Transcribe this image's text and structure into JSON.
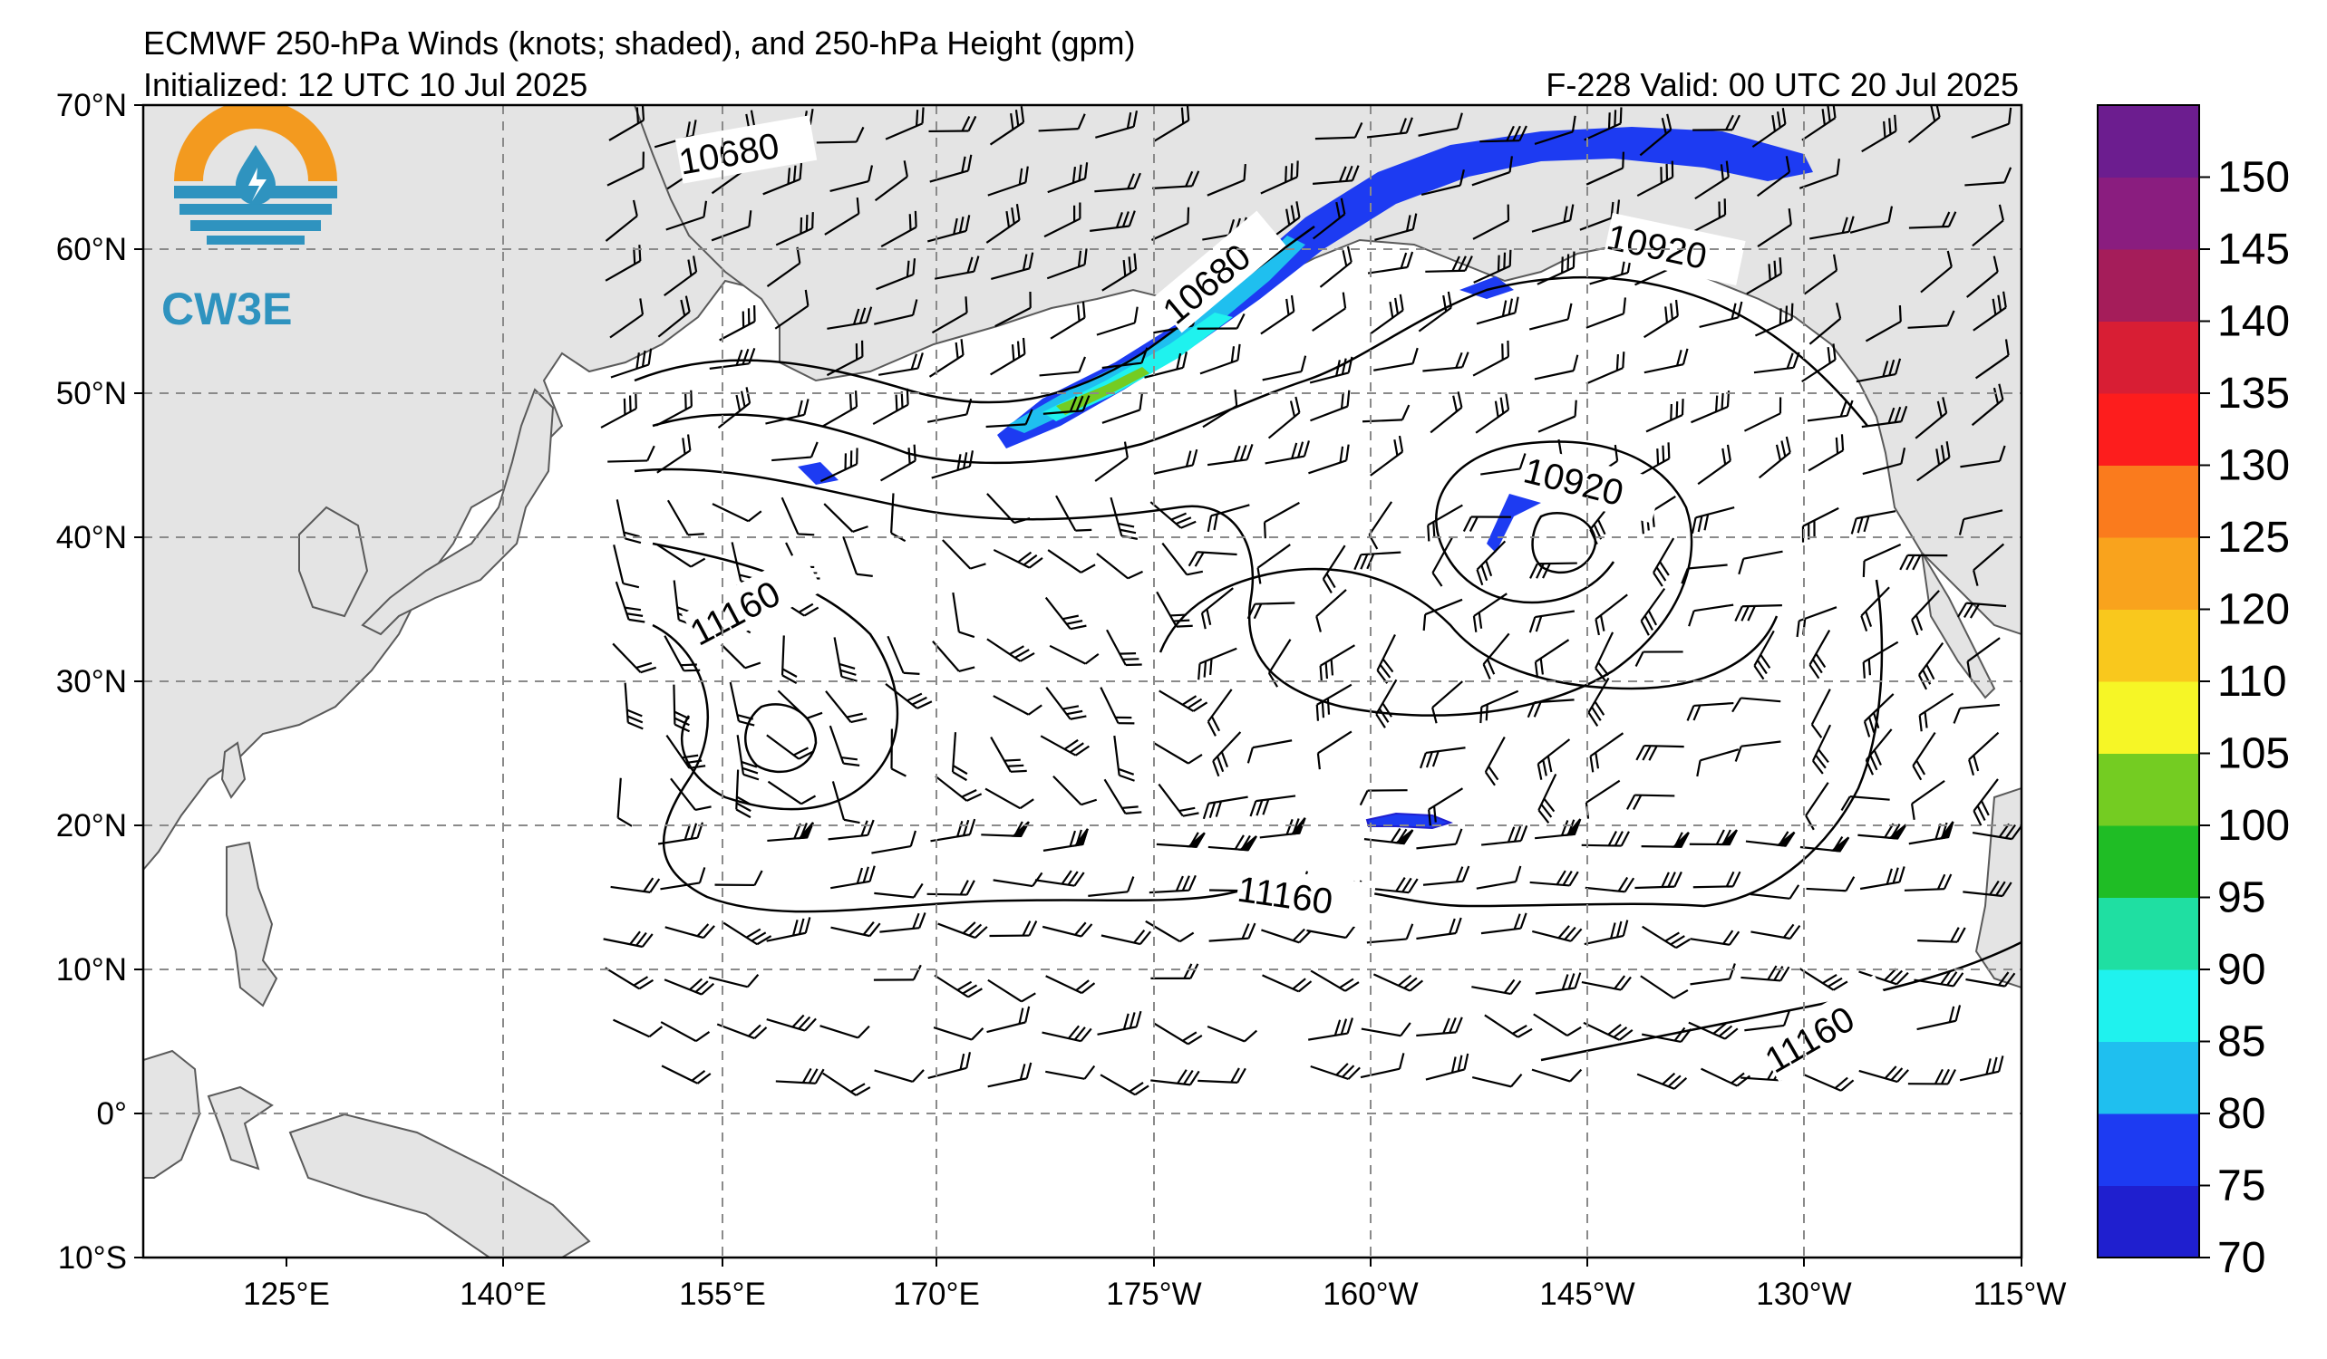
{
  "title_line1": "ECMWF 250-hPa Winds (knots; shaded), and 250-hPa Height (gpm)",
  "title_line2": "Initialized: 12 UTC 10 Jul 2025",
  "valid_line": "F-228  Valid: 00 UTC 20 Jul 2025",
  "logo_text": "CW3E",
  "lat_labels": [
    "70°N",
    "60°N",
    "50°N",
    "40°N",
    "30°N",
    "20°N",
    "10°N",
    "0°",
    "10°S"
  ],
  "lon_labels": [
    "125°E",
    "140°E",
    "155°E",
    "170°E",
    "175°W",
    "160°W",
    "145°W",
    "130°W",
    "115°W"
  ],
  "map_extent": {
    "lon_west_east": [
      115,
      245
    ],
    "lat_south_north": [
      -10,
      70
    ]
  },
  "contour_labels": [
    "10680",
    "10680",
    "10920",
    "10920",
    "11160",
    "11160",
    "11160"
  ],
  "colorbar": {
    "ticks": [
      "70",
      "75",
      "80",
      "85",
      "90",
      "95",
      "100",
      "105",
      "110",
      "120",
      "125",
      "130",
      "135",
      "140",
      "145",
      "150"
    ],
    "colors": [
      "#1f1fcf",
      "#1d3bf2",
      "#1fbfef",
      "#1ff2ee",
      "#1fdfa2",
      "#1fbd25",
      "#74cc22",
      "#f6f626",
      "#f9c81d",
      "#f9a31d",
      "#fa7b1d",
      "#fd1d1d",
      "#d81e34",
      "#a51d5a",
      "#8a1d7f",
      "#6c1d8f"
    ]
  },
  "colors": {
    "land": "#e4e4e4",
    "coast": "#5a5a5a",
    "grid": "#8a8a8a",
    "logo_orange": "#f39a1f",
    "logo_blue": "#2f93bf"
  }
}
